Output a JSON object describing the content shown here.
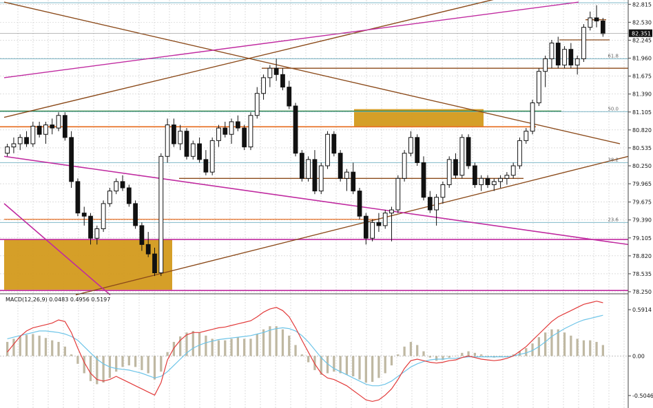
{
  "chart_data": {
    "type": "candlestick",
    "price_axis_labels": [
      "82.815",
      "82.530",
      "82.245",
      "81.960",
      "81.675",
      "81.390",
      "81.105",
      "80.820",
      "80.535",
      "80.250",
      "79.965",
      "79.675",
      "79.390",
      "79.105",
      "78.820",
      "78.535",
      "78.250"
    ],
    "price_axis_values": [
      82.815,
      82.53,
      82.245,
      81.96,
      81.675,
      81.39,
      81.105,
      80.82,
      80.535,
      80.25,
      79.965,
      79.675,
      79.39,
      79.105,
      78.82,
      78.535,
      78.25
    ],
    "price_range": [
      78.25,
      82.84
    ],
    "current_price_label": "82.351",
    "current_price": 82.351,
    "fib_labels": [
      {
        "text": "61.8",
        "price": 81.95
      },
      {
        "text": "50.0",
        "price": 81.11
      },
      {
        "text": "38.2",
        "price": 80.3
      },
      {
        "text": "23.6",
        "price": 79.35
      }
    ],
    "candles": [
      [
        80.45,
        80.6,
        80.4,
        80.55
      ],
      [
        80.55,
        80.7,
        80.45,
        80.6
      ],
      [
        80.6,
        80.75,
        80.5,
        80.7
      ],
      [
        80.7,
        80.8,
        80.55,
        80.6
      ],
      [
        80.6,
        80.95,
        80.55,
        80.88
      ],
      [
        80.88,
        80.95,
        80.7,
        80.75
      ],
      [
        80.75,
        80.95,
        80.6,
        80.9
      ],
      [
        80.9,
        81.0,
        80.75,
        80.85
      ],
      [
        80.85,
        81.1,
        80.8,
        81.05
      ],
      [
        81.05,
        81.1,
        80.65,
        80.7
      ],
      [
        80.7,
        80.8,
        79.9,
        80.0
      ],
      [
        80.0,
        80.05,
        79.45,
        79.5
      ],
      [
        79.5,
        79.6,
        79.3,
        79.45
      ],
      [
        79.45,
        79.5,
        79.0,
        79.1
      ],
      [
        79.1,
        79.3,
        79.0,
        79.25
      ],
      [
        79.25,
        79.7,
        79.2,
        79.65
      ],
      [
        79.65,
        79.9,
        79.6,
        79.85
      ],
      [
        79.85,
        80.05,
        79.8,
        80.0
      ],
      [
        80.0,
        80.1,
        79.85,
        79.9
      ],
      [
        79.9,
        79.95,
        79.6,
        79.65
      ],
      [
        79.65,
        79.7,
        79.25,
        79.3
      ],
      [
        79.3,
        79.35,
        78.9,
        79.0
      ],
      [
        79.0,
        79.2,
        78.8,
        78.85
      ],
      [
        78.85,
        78.95,
        78.5,
        78.55
      ],
      [
        78.55,
        80.45,
        78.5,
        80.4
      ],
      [
        80.4,
        81.0,
        80.3,
        80.9
      ],
      [
        80.9,
        81.0,
        80.55,
        80.6
      ],
      [
        80.6,
        80.9,
        80.5,
        80.8
      ],
      [
        80.8,
        80.85,
        80.35,
        80.4
      ],
      [
        80.4,
        80.65,
        80.35,
        80.6
      ],
      [
        80.6,
        80.7,
        80.3,
        80.35
      ],
      [
        80.35,
        80.5,
        80.1,
        80.15
      ],
      [
        80.15,
        80.7,
        80.1,
        80.65
      ],
      [
        80.65,
        80.9,
        80.55,
        80.85
      ],
      [
        80.85,
        80.95,
        80.7,
        80.75
      ],
      [
        80.75,
        81.0,
        80.6,
        80.95
      ],
      [
        80.95,
        81.05,
        80.8,
        80.85
      ],
      [
        80.85,
        80.9,
        80.5,
        80.55
      ],
      [
        80.55,
        81.1,
        80.5,
        81.05
      ],
      [
        81.05,
        81.5,
        81.0,
        81.4
      ],
      [
        81.4,
        81.7,
        81.3,
        81.65
      ],
      [
        81.65,
        81.85,
        81.5,
        81.8
      ],
      [
        81.8,
        81.95,
        81.6,
        81.7
      ],
      [
        81.7,
        81.8,
        81.45,
        81.5
      ],
      [
        81.5,
        81.6,
        81.15,
        81.2
      ],
      [
        81.2,
        81.25,
        80.4,
        80.45
      ],
      [
        80.45,
        80.5,
        80.0,
        80.05
      ],
      [
        80.05,
        80.4,
        80.0,
        80.35
      ],
      [
        80.35,
        80.5,
        79.8,
        79.85
      ],
      [
        79.85,
        80.3,
        79.8,
        80.25
      ],
      [
        80.25,
        80.8,
        80.2,
        80.75
      ],
      [
        80.75,
        80.8,
        80.4,
        80.45
      ],
      [
        80.45,
        80.5,
        80.0,
        80.05
      ],
      [
        80.05,
        80.2,
        79.85,
        80.15
      ],
      [
        80.15,
        80.3,
        79.8,
        79.85
      ],
      [
        79.85,
        79.9,
        79.4,
        79.45
      ],
      [
        79.45,
        79.5,
        79.0,
        79.1
      ],
      [
        79.1,
        79.4,
        79.05,
        79.35
      ],
      [
        79.35,
        79.5,
        79.2,
        79.3
      ],
      [
        79.3,
        79.55,
        79.25,
        79.5
      ],
      [
        79.5,
        79.6,
        79.05,
        79.55
      ],
      [
        79.55,
        80.1,
        79.5,
        80.05
      ],
      [
        80.05,
        80.5,
        80.0,
        80.45
      ],
      [
        80.45,
        80.8,
        80.4,
        80.7
      ],
      [
        80.7,
        80.75,
        80.25,
        80.3
      ],
      [
        80.3,
        80.4,
        79.7,
        79.75
      ],
      [
        79.75,
        79.85,
        79.5,
        79.55
      ],
      [
        79.55,
        79.8,
        79.3,
        79.75
      ],
      [
        79.75,
        80.0,
        79.65,
        79.95
      ],
      [
        79.95,
        80.4,
        79.9,
        80.35
      ],
      [
        80.35,
        80.45,
        80.05,
        80.1
      ],
      [
        80.1,
        80.75,
        80.05,
        80.7
      ],
      [
        80.7,
        80.75,
        80.2,
        80.25
      ],
      [
        80.25,
        80.3,
        79.9,
        79.95
      ],
      [
        79.95,
        80.1,
        79.85,
        80.05
      ],
      [
        80.05,
        80.1,
        79.9,
        79.95
      ],
      [
        79.95,
        80.05,
        79.85,
        80.0
      ],
      [
        80.0,
        80.1,
        79.9,
        80.05
      ],
      [
        80.05,
        80.15,
        79.95,
        80.1
      ],
      [
        80.1,
        80.3,
        80.05,
        80.25
      ],
      [
        80.25,
        80.7,
        80.2,
        80.65
      ],
      [
        80.65,
        80.85,
        80.6,
        80.8
      ],
      [
        80.8,
        81.3,
        80.75,
        81.25
      ],
      [
        81.25,
        81.8,
        81.2,
        81.75
      ],
      [
        81.75,
        82.0,
        81.5,
        81.95
      ],
      [
        81.95,
        82.25,
        81.8,
        82.2
      ],
      [
        82.2,
        82.3,
        81.8,
        81.85
      ],
      [
        81.85,
        82.15,
        81.8,
        82.1
      ],
      [
        82.1,
        82.2,
        81.8,
        81.85
      ],
      [
        81.85,
        82.0,
        81.7,
        81.95
      ],
      [
        81.95,
        82.5,
        81.9,
        82.45
      ],
      [
        82.45,
        82.7,
        82.4,
        82.6
      ],
      [
        82.6,
        82.8,
        82.45,
        82.55
      ],
      [
        82.55,
        82.6,
        82.3,
        82.35
      ]
    ],
    "macd_label": "MACD(12,26,9) 0.0483 0.4956 0.5197",
    "macd_axis_labels": [
      "0.5914",
      "0.00",
      "-0.5046"
    ],
    "macd_axis_values": [
      0.5914,
      0.0,
      -0.5046
    ],
    "macd_range": [
      -0.62,
      0.68
    ],
    "macd_hist": [
      0.18,
      0.22,
      0.25,
      0.27,
      0.28,
      0.26,
      0.23,
      0.2,
      0.18,
      0.12,
      0.02,
      -0.1,
      -0.22,
      -0.32,
      -0.36,
      -0.34,
      -0.28,
      -0.2,
      -0.14,
      -0.12,
      -0.14,
      -0.18,
      -0.22,
      -0.3,
      -0.2,
      0.05,
      0.18,
      0.25,
      0.3,
      0.32,
      0.3,
      0.26,
      0.22,
      0.2,
      0.2,
      0.22,
      0.24,
      0.22,
      0.22,
      0.28,
      0.34,
      0.38,
      0.38,
      0.34,
      0.26,
      0.14,
      0.02,
      -0.08,
      -0.18,
      -0.24,
      -0.22,
      -0.2,
      -0.22,
      -0.24,
      -0.26,
      -0.3,
      -0.34,
      -0.33,
      -0.28,
      -0.22,
      -0.12,
      0.02,
      0.12,
      0.18,
      0.14,
      0.06,
      -0.02,
      -0.06,
      -0.05,
      -0.02,
      0.0,
      0.04,
      0.06,
      0.04,
      0.02,
      0.0,
      -0.02,
      -0.01,
      0.0,
      0.02,
      0.06,
      0.1,
      0.16,
      0.24,
      0.3,
      0.34,
      0.34,
      0.3,
      0.26,
      0.22,
      0.2,
      0.2,
      0.18,
      0.14
    ],
    "macd_signal": [
      0.22,
      0.24,
      0.26,
      0.28,
      0.3,
      0.32,
      0.32,
      0.31,
      0.3,
      0.28,
      0.25,
      0.2,
      0.12,
      0.04,
      -0.04,
      -0.1,
      -0.14,
      -0.16,
      -0.17,
      -0.18,
      -0.2,
      -0.22,
      -0.25,
      -0.28,
      -0.26,
      -0.2,
      -0.12,
      -0.04,
      0.04,
      0.1,
      0.14,
      0.17,
      0.19,
      0.21,
      0.22,
      0.23,
      0.24,
      0.25,
      0.26,
      0.28,
      0.3,
      0.33,
      0.35,
      0.36,
      0.35,
      0.32,
      0.26,
      0.18,
      0.08,
      -0.02,
      -0.1,
      -0.16,
      -0.2,
      -0.24,
      -0.28,
      -0.32,
      -0.36,
      -0.38,
      -0.38,
      -0.36,
      -0.32,
      -0.26,
      -0.2,
      -0.14,
      -0.1,
      -0.07,
      -0.05,
      -0.04,
      -0.04,
      -0.03,
      -0.03,
      -0.02,
      -0.01,
      -0.01,
      -0.01,
      -0.01,
      -0.01,
      -0.01,
      -0.01,
      0.0,
      0.02,
      0.04,
      0.07,
      0.12,
      0.18,
      0.25,
      0.3,
      0.35,
      0.39,
      0.43,
      0.46,
      0.48,
      0.5,
      0.52
    ],
    "macd_line": [
      0.05,
      0.15,
      0.25,
      0.32,
      0.36,
      0.38,
      0.4,
      0.42,
      0.46,
      0.44,
      0.3,
      0.1,
      -0.08,
      -0.22,
      -0.3,
      -0.32,
      -0.3,
      -0.26,
      -0.3,
      -0.34,
      -0.38,
      -0.42,
      -0.46,
      -0.5,
      -0.34,
      -0.05,
      0.1,
      0.2,
      0.27,
      0.3,
      0.3,
      0.32,
      0.34,
      0.36,
      0.37,
      0.39,
      0.41,
      0.43,
      0.45,
      0.5,
      0.56,
      0.6,
      0.62,
      0.58,
      0.5,
      0.36,
      0.2,
      0.05,
      -0.1,
      -0.22,
      -0.28,
      -0.3,
      -0.34,
      -0.38,
      -0.44,
      -0.5,
      -0.56,
      -0.58,
      -0.56,
      -0.5,
      -0.42,
      -0.3,
      -0.16,
      -0.06,
      -0.04,
      -0.06,
      -0.08,
      -0.09,
      -0.08,
      -0.06,
      -0.05,
      -0.02,
      0.0,
      -0.02,
      -0.04,
      -0.05,
      -0.06,
      -0.05,
      -0.03,
      0.0,
      0.06,
      0.12,
      0.2,
      0.28,
      0.36,
      0.44,
      0.5,
      0.54,
      0.58,
      0.62,
      0.66,
      0.68,
      0.7,
      0.68
    ]
  }
}
